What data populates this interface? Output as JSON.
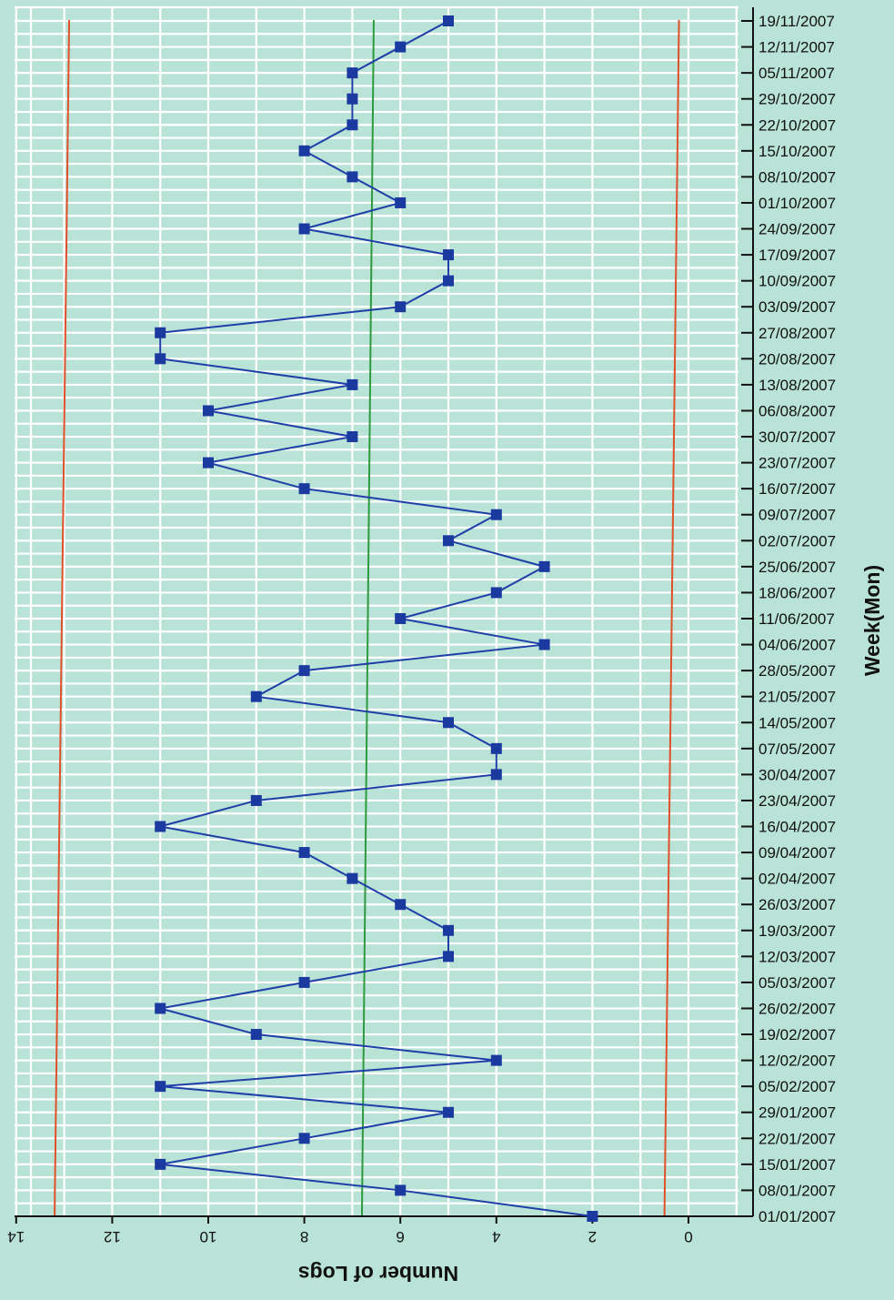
{
  "chart_data": {
    "type": "line",
    "title": "",
    "xlabel": "Number of Logs",
    "ylabel": "Week(Mon)",
    "x_axis_reversed": true,
    "xlim": [
      -1,
      14
    ],
    "x_ticks": [
      0,
      2,
      4,
      6,
      8,
      10,
      12,
      14
    ],
    "grid": true,
    "legend": "none",
    "categories": [
      "01/01/2007",
      "08/01/2007",
      "15/01/2007",
      "22/01/2007",
      "29/01/2007",
      "05/02/2007",
      "12/02/2007",
      "19/02/2007",
      "26/02/2007",
      "05/03/2007",
      "12/03/2007",
      "19/03/2007",
      "26/03/2007",
      "02/04/2007",
      "09/04/2007",
      "16/04/2007",
      "23/04/2007",
      "30/04/2007",
      "07/05/2007",
      "14/05/2007",
      "21/05/2007",
      "28/05/2007",
      "04/06/2007",
      "11/06/2007",
      "18/06/2007",
      "25/06/2007",
      "02/07/2007",
      "09/07/2007",
      "16/07/2007",
      "23/07/2007",
      "30/07/2007",
      "06/08/2007",
      "13/08/2007",
      "20/08/2007",
      "27/08/2007",
      "03/09/2007",
      "10/09/2007",
      "17/09/2007",
      "24/09/2007",
      "01/10/2007",
      "08/10/2007",
      "15/10/2007",
      "22/10/2007",
      "29/10/2007",
      "05/11/2007",
      "12/11/2007",
      "19/11/2007"
    ],
    "series": [
      {
        "values": [
          2,
          6,
          11,
          8,
          5,
          11,
          4,
          9,
          11,
          8,
          5,
          5,
          6,
          7,
          8,
          11,
          9,
          4,
          4,
          5,
          9,
          8,
          3,
          6,
          4,
          3,
          5,
          4,
          8,
          10,
          7,
          10,
          7,
          11,
          11,
          6,
          5,
          5,
          8,
          6,
          7,
          8,
          7,
          7,
          7,
          6,
          5
        ]
      }
    ],
    "reference_lines": [
      {
        "kind": "center",
        "value": 6.8
      },
      {
        "kind": "upper-limit",
        "value": 13.2
      },
      {
        "kind": "lower-limit",
        "value": 0.5
      }
    ],
    "colors": {
      "background": "#b9e3d6",
      "grid": "#ffffff",
      "series": "#1f3fa8",
      "marker": "#1a3aa0",
      "center_line": "#2e9a3e",
      "limit_lines": "#e0502a",
      "axis": "#111111"
    }
  }
}
